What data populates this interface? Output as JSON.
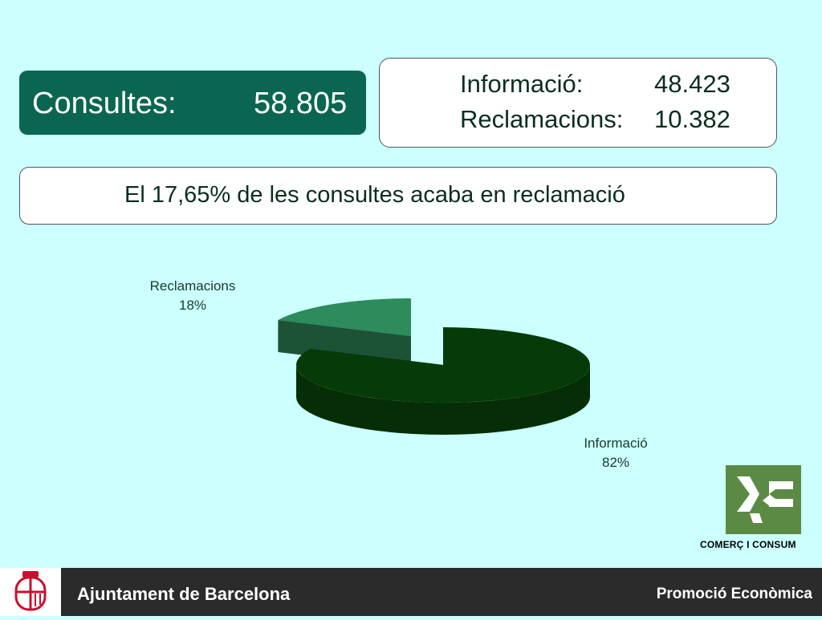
{
  "summary": {
    "consultes_label": "Consultes:",
    "consultes_value": "58.805"
  },
  "breakdown": [
    {
      "label": "Informació:",
      "value": "48.423"
    },
    {
      "label": "Reclamacions:",
      "value": "10.382"
    }
  ],
  "banner": {
    "text": "El 17,65% de les consultes acaba en reclamació"
  },
  "chart_data": {
    "type": "pie",
    "slices": [
      {
        "name": "Reclamacions",
        "percent_label": "18%",
        "value": 18,
        "color": "#2e8b5c"
      },
      {
        "name": "Informació",
        "percent_label": "82%",
        "value": 82,
        "color": "#063a08"
      }
    ]
  },
  "logo": {
    "text": "COMERÇ I CONSUM",
    "color": "#5b8a45"
  },
  "footer": {
    "city": "Ajuntament de Barcelona",
    "department": "Promoció Econòmica"
  },
  "colors": {
    "background": "#ccffff",
    "accent": "#0a6650",
    "footer": "#2b2b2b",
    "crest_red": "#c8102e"
  }
}
